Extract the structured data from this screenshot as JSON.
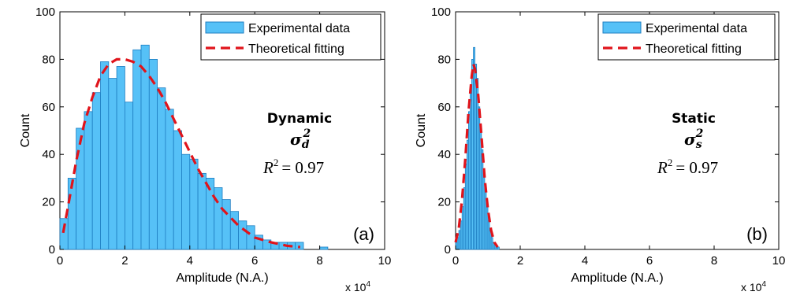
{
  "chart_data": [
    {
      "panel_label": "(a)",
      "type": "bar",
      "xlabel": "Amplitude (N.A.)",
      "ylabel": "Count",
      "xlim": [
        0,
        10
      ],
      "ylim": [
        0,
        100
      ],
      "x_multiplier": "x 10",
      "x_multiplier_exp": "4",
      "xticks": [
        "0",
        "2",
        "4",
        "6",
        "8",
        "10"
      ],
      "yticks": [
        "0",
        "20",
        "40",
        "60",
        "80",
        "100"
      ],
      "legend": [
        "Experimental data",
        "Theoretical fitting"
      ],
      "annotation": {
        "title": "Dynamic",
        "sigma": "σ",
        "sigma_sub": "d",
        "sigma_sup": "2",
        "r2_text": "R",
        "r2_sup": "2",
        "r2_value": "= 0.97"
      },
      "bin_width": 0.25,
      "bins_start": [
        0.0,
        0.25,
        0.5,
        0.75,
        1.0,
        1.25,
        1.5,
        1.75,
        2.0,
        2.25,
        2.5,
        2.75,
        3.0,
        3.25,
        3.5,
        3.75,
        4.0,
        4.25,
        4.5,
        4.75,
        5.0,
        5.25,
        5.5,
        5.75,
        6.0,
        6.25,
        6.5,
        6.75,
        7.0,
        7.25,
        7.5,
        7.75,
        8.0
      ],
      "counts": [
        13,
        30,
        51,
        58,
        66,
        79,
        72,
        77,
        62,
        84,
        86,
        80,
        68,
        59,
        50,
        40,
        38,
        32,
        30,
        26,
        21,
        16,
        12,
        10,
        6,
        4,
        3,
        3,
        3,
        3,
        0,
        0,
        1
      ],
      "fit_x": [
        0.1,
        0.25,
        0.5,
        0.75,
        1.0,
        1.25,
        1.5,
        1.75,
        2.0,
        2.25,
        2.5,
        2.75,
        3.0,
        3.25,
        3.5,
        3.75,
        4.0,
        4.25,
        4.5,
        4.75,
        5.0,
        5.5,
        6.0,
        6.5,
        7.0,
        7.4
      ],
      "fit_y": [
        7,
        18,
        37,
        53,
        64,
        73,
        78,
        80,
        80,
        79,
        77,
        73,
        68,
        62,
        55,
        48,
        41,
        34,
        28,
        22,
        17,
        10,
        5,
        3,
        1.5,
        1
      ],
      "colors": {
        "bar": "#56c1f7",
        "bar_edge": "#1e7ec2",
        "fit": "#e0141b"
      }
    },
    {
      "panel_label": "(b)",
      "type": "bar",
      "xlabel": "Amplitude (N.A.)",
      "ylabel": "Count",
      "xlim": [
        0,
        10
      ],
      "ylim": [
        0,
        100
      ],
      "x_multiplier": "x 10",
      "x_multiplier_exp": "4",
      "xticks": [
        "0",
        "2",
        "4",
        "6",
        "8",
        "10"
      ],
      "yticks": [
        "0",
        "20",
        "40",
        "60",
        "80",
        "100"
      ],
      "legend": [
        "Experimental data",
        "Theoretical fitting"
      ],
      "annotation": {
        "title": "Static",
        "sigma": "σ",
        "sigma_sub": "s",
        "sigma_sup": "2",
        "r2_text": "R",
        "r2_sup": "2",
        "r2_value": "= 0.97"
      },
      "bin_width": 0.05,
      "bins_start": [
        0.0,
        0.05,
        0.1,
        0.15,
        0.2,
        0.25,
        0.3,
        0.35,
        0.4,
        0.45,
        0.5,
        0.55,
        0.6,
        0.65,
        0.7,
        0.75,
        0.8,
        0.85,
        0.9,
        0.95,
        1.0,
        1.05,
        1.1,
        1.15,
        1.2,
        1.25,
        1.3,
        1.35
      ],
      "counts": [
        3,
        5,
        8,
        12,
        18,
        26,
        36,
        46,
        58,
        68,
        80,
        85,
        78,
        72,
        60,
        52,
        42,
        33,
        25,
        18,
        12,
        8,
        5,
        3,
        2,
        1,
        1,
        0
      ],
      "fit_x": [
        0.0,
        0.1,
        0.2,
        0.3,
        0.4,
        0.5,
        0.55,
        0.6,
        0.7,
        0.8,
        0.9,
        1.0,
        1.1,
        1.2,
        1.3
      ],
      "fit_y": [
        3,
        9,
        21,
        38,
        58,
        73,
        78,
        76,
        65,
        48,
        30,
        17,
        8,
        3,
        1
      ],
      "colors": {
        "bar": "#56c1f7",
        "bar_edge": "#1e7ec2",
        "fit": "#e0141b"
      }
    }
  ]
}
